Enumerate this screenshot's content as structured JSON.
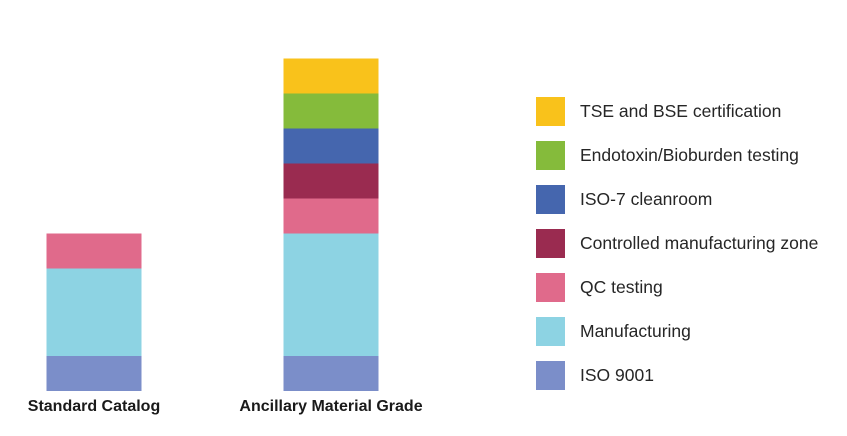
{
  "chart_data": {
    "type": "bar",
    "stacked": true,
    "categories": [
      "Standard Catalog",
      "Ancillary Material Grade"
    ],
    "series": [
      {
        "name": "ISO 9001",
        "color": "#7b8ec9",
        "values": [
          1,
          1
        ]
      },
      {
        "name": "Manufacturing",
        "color": "#8dd3e3",
        "values": [
          2.5,
          3.5
        ]
      },
      {
        "name": "QC testing",
        "color": "#e06a8b",
        "values": [
          1,
          1
        ]
      },
      {
        "name": "Controlled manufacturing zone",
        "color": "#9a2b50",
        "values": [
          0,
          1
        ]
      },
      {
        "name": "ISO-7 cleanroom",
        "color": "#4566ae",
        "values": [
          0,
          1
        ]
      },
      {
        "name": "Endotoxin/Bioburden testing",
        "color": "#85bb3b",
        "values": [
          0,
          1
        ]
      },
      {
        "name": "TSE and BSE certification",
        "color": "#f9c21b",
        "values": [
          0,
          1
        ]
      }
    ],
    "legend_order": [
      "TSE and BSE certification",
      "Endotoxin/Bioburden testing",
      "ISO-7 cleanroom",
      "Controlled manufacturing zone",
      "QC testing",
      "Manufacturing",
      "ISO 9001"
    ],
    "legend_position": "right",
    "ylim": [
      0,
      9.5
    ],
    "axes_visible": false,
    "grid": false
  }
}
